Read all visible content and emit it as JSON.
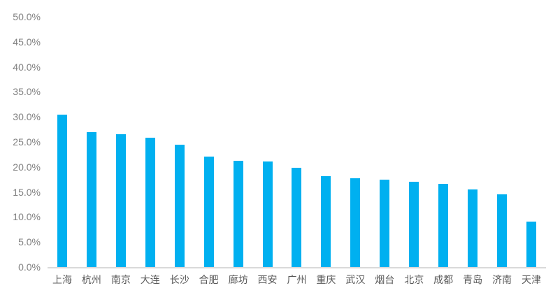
{
  "chart_data": {
    "type": "bar",
    "title": "",
    "xlabel": "",
    "ylabel": "",
    "categories": [
      "上海",
      "杭州",
      "南京",
      "大连",
      "长沙",
      "合肥",
      "廊坊",
      "西安",
      "广州",
      "重庆",
      "武汉",
      "烟台",
      "北京",
      "成都",
      "青岛",
      "济南",
      "天津"
    ],
    "values": [
      30.5,
      27.0,
      26.6,
      25.8,
      24.5,
      22.1,
      21.3,
      21.1,
      19.8,
      18.1,
      17.7,
      17.4,
      17.1,
      16.6,
      15.5,
      14.5,
      9.1
    ],
    "ylim": [
      0,
      50
    ],
    "ytick_interval": 5,
    "ytick_labels": [
      "0.0%",
      "5.0%",
      "10.0%",
      "15.0%",
      "20.0%",
      "25.0%",
      "30.0%",
      "35.0%",
      "40.0%",
      "45.0%",
      "50.0%"
    ],
    "grid": false,
    "legend": false,
    "bar_color": "#00b0f0",
    "axis_line_color": "#d9d9d9",
    "ytick_color": "#808080",
    "xtick_color": "#595959",
    "background_color": "#ffffff"
  }
}
